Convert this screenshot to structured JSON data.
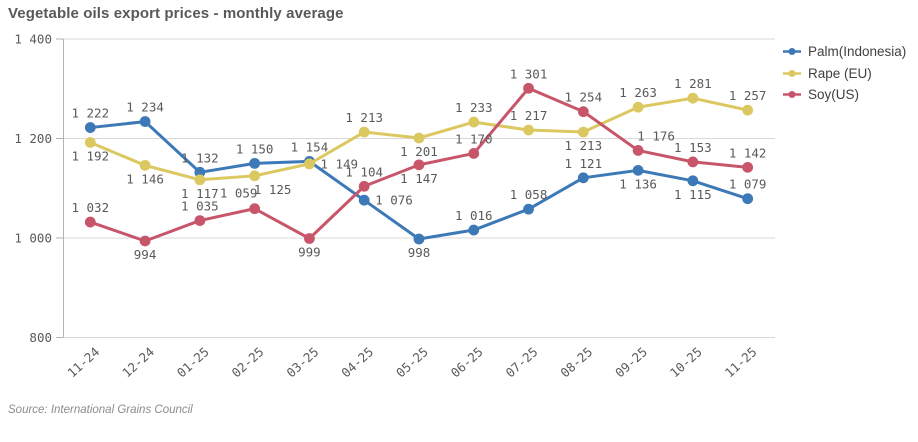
{
  "title": "Vegetable oils export prices - monthly average",
  "source": "Source: International Grains Council",
  "legend": {
    "position": "right",
    "items": [
      {
        "label": "Palm(Indonesia)",
        "color": "#3d79b6"
      },
      {
        "label": "Rape (EU)",
        "color": "#dbc861"
      },
      {
        "label": "Soy(US)",
        "color": "#c8566b"
      }
    ]
  },
  "chart_data": {
    "type": "line",
    "title": "Vegetable oils export prices - monthly average",
    "categories": [
      "11-24",
      "12-24",
      "01-25",
      "02-25",
      "03-25",
      "04-25",
      "05-25",
      "06-25",
      "07-25",
      "08-25",
      "09-25",
      "10-25",
      "11-25"
    ],
    "series": [
      {
        "name": "Palm(Indonesia)",
        "color": "#3d79b6",
        "values": [
          1222,
          1234,
          1132,
          1150,
          1154,
          1076,
          998,
          1016,
          1058,
          1121,
          1136,
          1115,
          1079
        ],
        "label_pos": [
          "a",
          "a",
          "a",
          "a",
          "a",
          "r",
          "b",
          "a",
          "a",
          "a",
          "b",
          "b",
          "a"
        ]
      },
      {
        "name": "Rape (EU)",
        "color": "#dbc861",
        "values": [
          1192,
          1146,
          1117,
          1125,
          1149,
          1213,
          1201,
          1233,
          1217,
          1213,
          1263,
          1281,
          1257
        ],
        "label_pos": [
          "b",
          "b",
          "b",
          "br",
          "r",
          "a",
          "b",
          "a",
          "a",
          "b",
          "a",
          "a",
          "a"
        ]
      },
      {
        "name": "Soy(US)",
        "color": "#c8566b",
        "values": [
          1032,
          994,
          1035,
          1059,
          999,
          1104,
          1147,
          1170,
          1301,
          1254,
          1176,
          1153,
          1142
        ],
        "label_pos": [
          "a",
          "b",
          "a",
          "al",
          "b",
          "a",
          "b",
          "a",
          "a",
          "a",
          "ar",
          "a",
          "a"
        ]
      }
    ],
    "xlabel": "",
    "ylabel": "",
    "ylim": [
      800,
      1400
    ],
    "yticks": [
      800,
      1000,
      1200,
      1400
    ],
    "grid": true,
    "data_labels": true,
    "number_format": "space-thousands",
    "legend_position": "right"
  },
  "colors": {
    "background": "#ffffff",
    "grid_line": "#d9d9d9",
    "axis_line": "#b3b3b3",
    "tick_label": "#5a5a5a",
    "data_label": "#5a5a5a",
    "title_text": "#595959",
    "legend_text": "#404040",
    "source_text": "#8c8c8c"
  }
}
